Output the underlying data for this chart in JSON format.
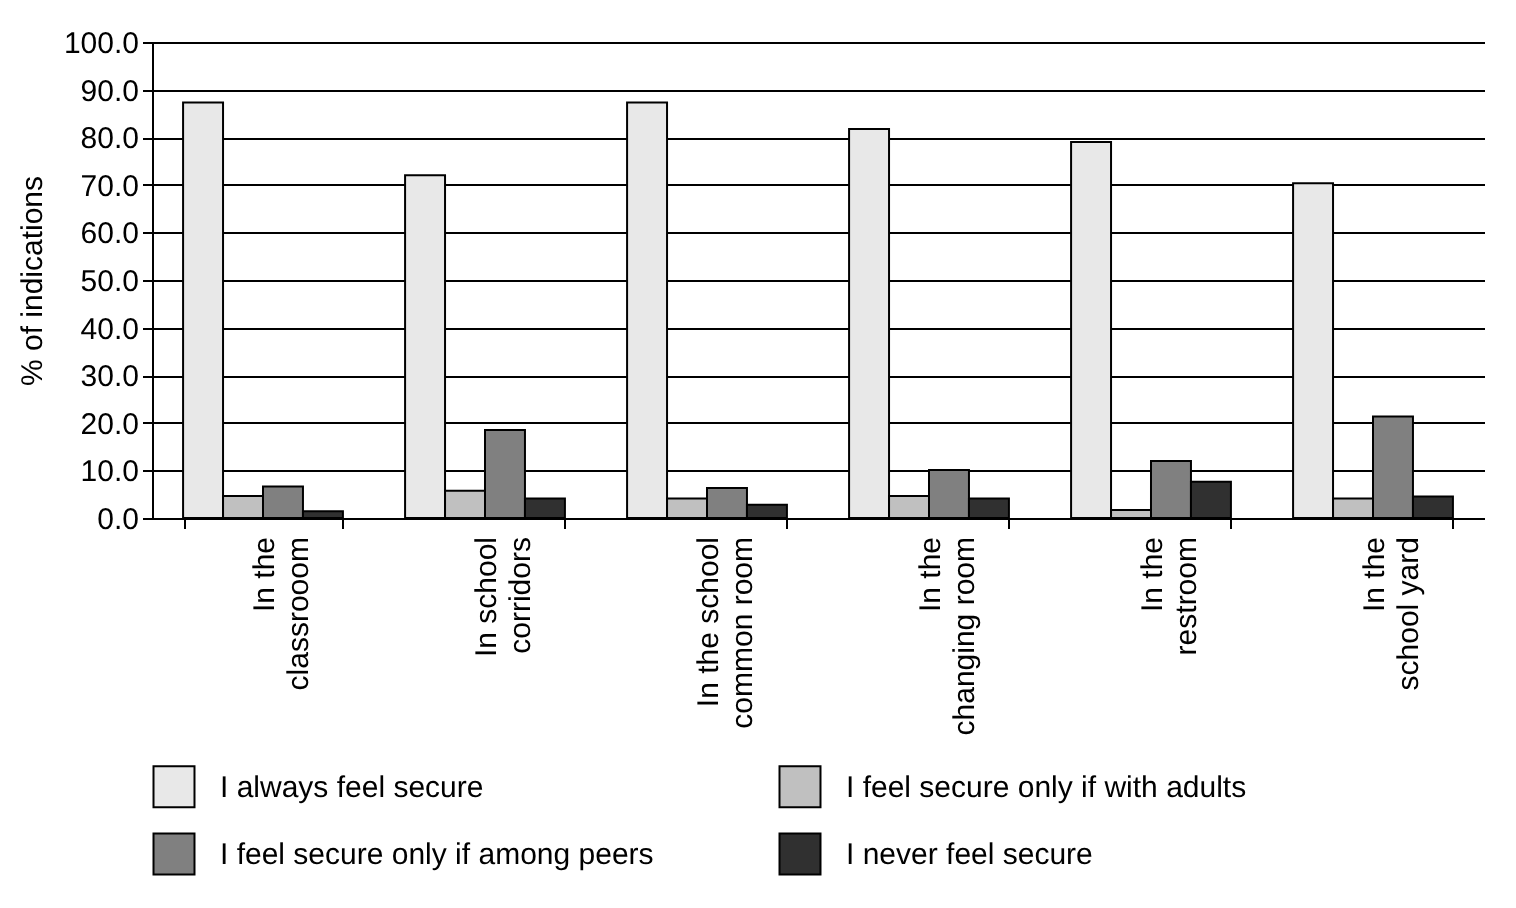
{
  "chart_data": {
    "type": "bar",
    "ylabel": "% of indications",
    "categories": [
      "In the\nclassrooom",
      "In school\ncorridors",
      "In the school\ncommon room",
      "In the\nchanging room",
      "In the\nrestroom",
      "In the\nschool yard"
    ],
    "series": [
      {
        "name": "I always feel secure",
        "color": "#e8e8e8",
        "values": [
          87.3,
          72.0,
          87.3,
          81.7,
          79.0,
          70.3
        ]
      },
      {
        "name": "I feel secure only if with adults",
        "color": "#c0c0c0",
        "values": [
          4.6,
          5.7,
          4.1,
          4.6,
          1.7,
          4.1
        ]
      },
      {
        "name": "I feel secure only if among peers",
        "color": "#808080",
        "values": [
          6.6,
          18.5,
          6.3,
          10.1,
          12.0,
          21.3
        ]
      },
      {
        "name": "I never feel secure",
        "color": "#303030",
        "values": [
          1.4,
          4.1,
          2.8,
          4.1,
          7.6,
          4.5
        ]
      }
    ],
    "ylim": [
      0,
      100
    ],
    "yticks": [
      {
        "value": 0,
        "label": "0.0"
      },
      {
        "value": 10,
        "label": "10.0"
      },
      {
        "value": 20,
        "label": "20.0"
      },
      {
        "value": 30,
        "label": "30.0"
      },
      {
        "value": 40,
        "label": "40.0"
      },
      {
        "value": 50,
        "label": "50.0"
      },
      {
        "value": 60,
        "label": "60.0"
      },
      {
        "value": 70,
        "label": "70.0"
      },
      {
        "value": 80,
        "label": "80.0"
      },
      {
        "value": 90,
        "label": "90.0"
      },
      {
        "value": 100,
        "label": "100.0"
      }
    ],
    "grid": "y",
    "legend": "bottom"
  }
}
